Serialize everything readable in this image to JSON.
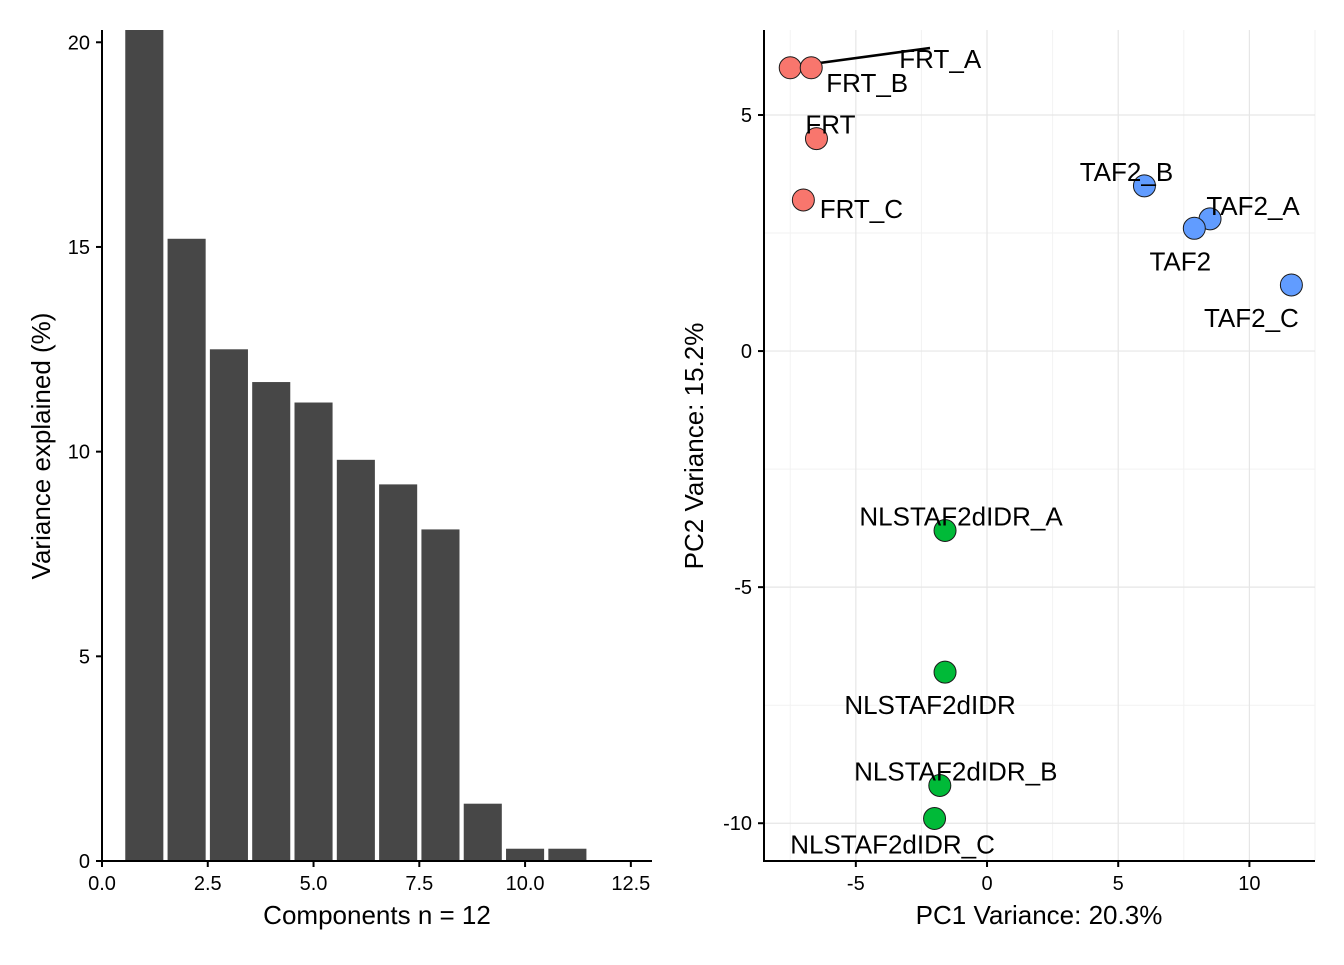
{
  "chart_data": [
    {
      "type": "bar",
      "xlabel": "Components n = 12",
      "ylabel": "Variance explained (%)",
      "xlim": [
        0,
        13
      ],
      "ylim": [
        0,
        20.3
      ],
      "xticks": [
        0,
        2.5,
        5,
        7.5,
        10,
        12.5
      ],
      "xtick_labels": [
        "0.0",
        "2.5",
        "5.0",
        "7.5",
        "10.0",
        "12.5"
      ],
      "yticks": [
        0,
        5,
        10,
        15,
        20
      ],
      "ytick_labels": [
        "0",
        "5",
        "10",
        "15",
        "20"
      ],
      "x": [
        1,
        2,
        3,
        4,
        5,
        6,
        7,
        8,
        9,
        10,
        11,
        12
      ],
      "values": [
        20.3,
        15.2,
        12.5,
        11.7,
        11.2,
        9.8,
        9.2,
        8.1,
        1.4,
        0.3,
        0.3,
        0.0
      ],
      "bar_color": "#474747",
      "grid": false
    },
    {
      "type": "scatter",
      "xlabel": "PC1 Variance: 20.3%",
      "ylabel": "PC2 Variance: 15.2%",
      "xlim": [
        -8.5,
        12.5
      ],
      "ylim": [
        -10.8,
        6.8
      ],
      "xticks": [
        -5,
        0,
        5,
        10
      ],
      "xtick_labels": [
        "-5",
        "0",
        "5",
        "10"
      ],
      "yticks": [
        -10,
        -5,
        0,
        5
      ],
      "ytick_labels": [
        "-10",
        "-5",
        "0",
        "5"
      ],
      "grid": true,
      "series": [
        {
          "color": "#f8766d",
          "points": [
            {
              "label": "FRT_A",
              "x": -7.5,
              "y": 6.0
            },
            {
              "label": "FRT_B",
              "x": -6.7,
              "y": 6.0
            },
            {
              "label": "FRT",
              "x": -6.5,
              "y": 4.5
            },
            {
              "label": "FRT_C",
              "x": -7.0,
              "y": 3.2
            }
          ]
        },
        {
          "color": "#619cff",
          "points": [
            {
              "label": "TAF2_B",
              "x": 6.0,
              "y": 3.5
            },
            {
              "label": "TAF2_A",
              "x": 8.5,
              "y": 2.8
            },
            {
              "label": "TAF2",
              "x": 7.9,
              "y": 2.6
            },
            {
              "label": "TAF2_C",
              "x": 11.6,
              "y": 1.4
            }
          ]
        },
        {
          "color": "#00ba38",
          "points": [
            {
              "label": "NLSTAF2dIDR_A",
              "x": -1.6,
              "y": -3.8
            },
            {
              "label": "NLSTAF2dIDR",
              "x": -1.6,
              "y": -6.8
            },
            {
              "label": "NLSTAF2dIDR_B",
              "x": -1.8,
              "y": -9.2
            },
            {
              "label": "NLSTAF2dIDR_C",
              "x": -2.0,
              "y": -9.9
            }
          ]
        }
      ]
    }
  ]
}
